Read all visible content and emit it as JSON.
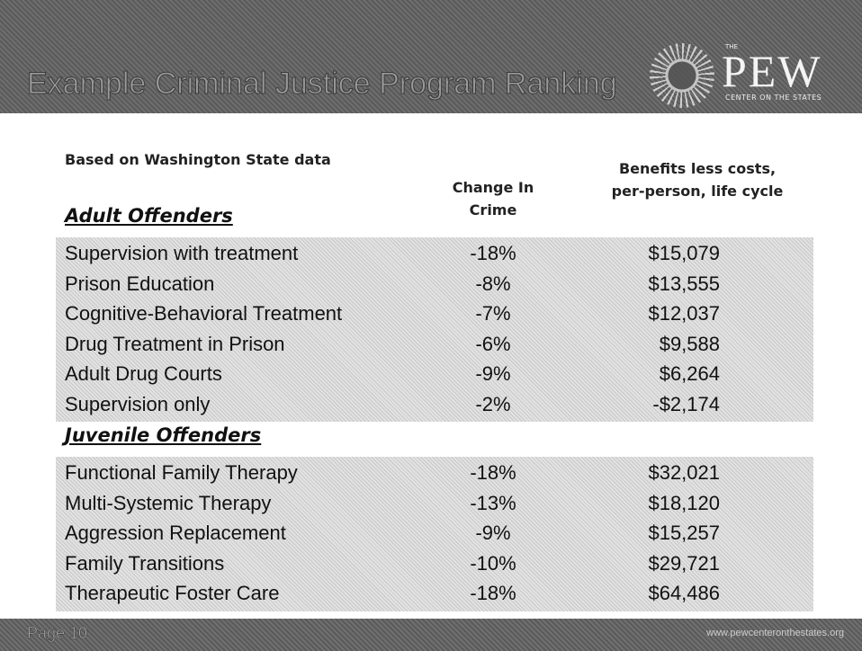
{
  "header": {
    "title": "Example Criminal Justice Program Ranking",
    "logo": {
      "small": "THE",
      "name": "PEW",
      "tagline": "CENTER ON THE STATES"
    }
  },
  "note": "Based on Washington State  data",
  "columns": [
    [
      "Change In",
      "Crime"
    ],
    [
      "Benefits less costs,",
      "per-person, life cycle"
    ]
  ],
  "sections": [
    {
      "title": "Adult Offenders",
      "rows": [
        [
          "Supervision with treatment",
          "-18%",
          "$15,079"
        ],
        [
          "Prison Education",
          "-8%",
          "$13,555"
        ],
        [
          "Cognitive-Behavioral Treatment",
          "-7%",
          "$12,037"
        ],
        [
          "Drug Treatment in Prison",
          "-6%",
          "$9,588"
        ],
        [
          "Adult Drug Courts",
          "-9%",
          "$6,264"
        ],
        [
          "Supervision only",
          "-2%",
          "-$2,174"
        ]
      ]
    },
    {
      "title": "Juvenile Offenders",
      "rows": [
        [
          "Functional Family Therapy",
          "-18%",
          "$32,021"
        ],
        [
          "Multi-Systemic Therapy",
          "-13%",
          "$18,120"
        ],
        [
          "Aggression Replacement",
          "-9%",
          "$15,257"
        ],
        [
          "Family Transitions",
          "-10%",
          "$29,721"
        ],
        [
          "Therapeutic Foster Care",
          "-18%",
          "$64,486"
        ]
      ]
    }
  ],
  "footer": {
    "page": "Page 10",
    "url": "www.pewcenteronthestates.org"
  }
}
